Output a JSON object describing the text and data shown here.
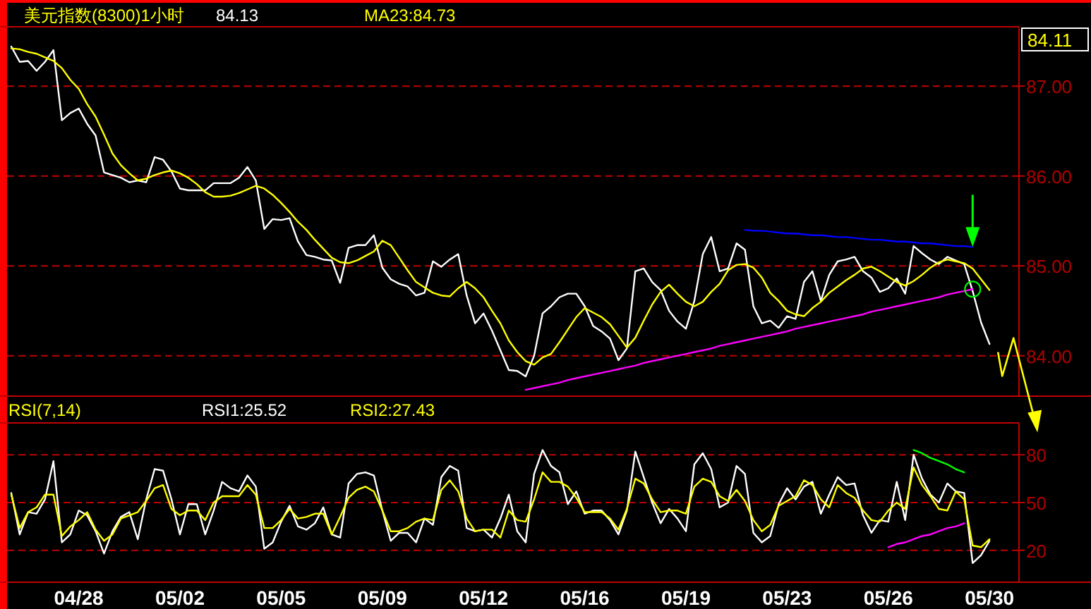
{
  "chart_data": [
    {
      "type": "line",
      "title": "美元指数(8300)1小时",
      "legend": "top",
      "grid": "y",
      "tick_labels": "y",
      "categories": [
        null,
        null,
        null,
        null,
        null,
        null,
        null,
        null,
        null,
        null,
        null,
        null,
        null,
        null,
        null,
        null,
        null,
        null,
        null,
        null,
        null,
        null,
        null,
        null,
        null,
        null,
        null,
        null,
        null,
        null,
        null,
        null,
        null,
        null,
        null,
        null,
        null,
        null,
        null,
        null,
        null,
        null,
        null,
        null,
        null,
        null,
        null,
        null,
        null,
        null,
        null,
        null,
        null,
        null,
        null,
        null,
        null,
        null,
        null,
        null,
        null,
        null,
        null,
        null,
        null,
        null,
        null,
        null,
        null,
        null,
        null,
        null,
        null,
        null,
        null,
        null,
        null,
        null,
        null,
        null,
        null,
        null,
        null,
        null,
        null,
        null,
        null,
        null,
        null,
        null,
        null,
        null,
        null,
        null,
        null,
        null,
        null,
        null,
        null,
        null,
        null,
        null,
        null,
        null,
        null,
        null,
        null,
        null,
        null,
        null,
        null,
        null,
        null,
        null,
        null,
        null,
        null,
        null,
        null,
        null
      ],
      "ylim": [
        83.55,
        87.66
      ],
      "yticks": [
        {
          "value": 84,
          "label": "84.00"
        },
        {
          "value": 85,
          "label": "85.00"
        },
        {
          "value": 86,
          "label": "86.00"
        },
        {
          "value": 87,
          "label": "87.00"
        }
      ],
      "annotations": [
        "84.11"
      ],
      "series": [
        {
          "name": "84.13",
          "color": "#ffffff",
          "values": [
            87.44,
            87.27,
            87.28,
            87.17,
            87.27,
            87.4,
            86.62,
            86.7,
            86.75,
            86.58,
            86.45,
            86.04,
            86.01,
            85.98,
            85.93,
            85.95,
            85.93,
            86.21,
            86.18,
            86.05,
            85.86,
            85.84,
            85.84,
            85.84,
            85.92,
            85.92,
            85.92,
            85.98,
            86.1,
            85.95,
            85.41,
            85.52,
            85.51,
            85.53,
            85.27,
            85.12,
            85.1,
            85.07,
            85.06,
            84.81,
            85.2,
            85.23,
            85.23,
            85.34,
            84.98,
            84.85,
            84.8,
            84.77,
            84.67,
            84.7,
            85.05,
            84.99,
            85.07,
            85.13,
            84.67,
            84.36,
            84.47,
            84.28,
            84.06,
            83.84,
            83.83,
            83.77,
            84.0,
            84.47,
            84.55,
            84.65,
            84.69,
            84.69,
            84.55,
            84.33,
            84.27,
            84.19,
            83.95,
            84.08,
            84.94,
            84.97,
            84.82,
            84.73,
            84.5,
            84.38,
            84.3,
            84.61,
            85.13,
            85.32,
            84.94,
            84.97,
            85.25,
            85.18,
            84.55,
            84.36,
            84.39,
            84.31,
            84.44,
            84.41,
            84.82,
            84.94,
            84.61,
            84.9,
            85.05,
            85.07,
            85.1,
            84.94,
            84.87,
            84.71,
            84.75,
            84.86,
            84.69,
            85.22,
            85.14,
            85.07,
            85.02,
            85.1,
            85.06,
            85.02,
            84.72,
            84.37,
            84.13,
            null,
            null,
            null
          ]
        },
        {
          "name": "MA23:84.73",
          "color": "#ffff00",
          "values": [
            87.42,
            87.41,
            87.38,
            87.36,
            87.32,
            87.28,
            87.2,
            87.07,
            86.97,
            86.8,
            86.66,
            86.46,
            86.25,
            86.12,
            86.03,
            85.95,
            85.97,
            86.01,
            86.04,
            86.06,
            86.03,
            85.98,
            85.91,
            85.82,
            85.77,
            85.77,
            85.78,
            85.81,
            85.85,
            85.89,
            85.86,
            85.79,
            85.7,
            85.6,
            85.49,
            85.4,
            85.29,
            85.19,
            85.09,
            85.04,
            85.03,
            85.06,
            85.11,
            85.16,
            85.28,
            85.23,
            85.09,
            84.95,
            84.82,
            84.76,
            84.7,
            84.67,
            84.66,
            84.75,
            84.82,
            84.75,
            84.65,
            84.5,
            84.36,
            84.17,
            84.04,
            83.94,
            83.9,
            83.98,
            84.02,
            84.15,
            84.29,
            84.43,
            84.53,
            84.48,
            84.43,
            84.35,
            84.22,
            84.09,
            84.2,
            84.39,
            84.57,
            84.71,
            84.79,
            84.69,
            84.6,
            84.55,
            84.6,
            84.71,
            84.8,
            84.95,
            85.01,
            85.02,
            84.98,
            84.87,
            84.7,
            84.61,
            84.5,
            84.46,
            84.44,
            84.53,
            84.6,
            84.7,
            84.77,
            84.84,
            84.9,
            84.97,
            84.99,
            84.94,
            84.88,
            84.82,
            84.78,
            84.83,
            84.9,
            84.98,
            85.04,
            85.07,
            85.05,
            85.03,
            84.97,
            84.85,
            84.73,
            null,
            null,
            null
          ]
        },
        {
          "color": "#0000ff",
          "values": [
            null,
            null,
            null,
            null,
            null,
            null,
            null,
            null,
            null,
            null,
            null,
            null,
            null,
            null,
            null,
            null,
            null,
            null,
            null,
            null,
            null,
            null,
            null,
            null,
            null,
            null,
            null,
            null,
            null,
            null,
            null,
            null,
            null,
            null,
            null,
            null,
            null,
            null,
            null,
            null,
            null,
            null,
            null,
            null,
            null,
            null,
            null,
            null,
            null,
            null,
            null,
            null,
            null,
            null,
            null,
            null,
            null,
            null,
            null,
            null,
            null,
            null,
            null,
            null,
            null,
            null,
            null,
            null,
            null,
            null,
            null,
            null,
            null,
            null,
            null,
            null,
            null,
            null,
            null,
            null,
            null,
            null,
            null,
            null,
            null,
            null,
            null,
            85.4,
            85.39,
            85.39,
            85.38,
            85.37,
            85.36,
            85.36,
            85.35,
            85.34,
            85.34,
            85.33,
            85.32,
            85.32,
            85.31,
            85.3,
            85.29,
            85.29,
            85.28,
            85.27,
            85.27,
            85.26,
            85.25,
            85.25,
            85.24,
            85.23,
            85.22,
            85.22,
            85.21,
            null,
            null,
            null,
            null,
            null
          ]
        },
        {
          "color": "#ff00ff",
          "values": [
            null,
            null,
            null,
            null,
            null,
            null,
            null,
            null,
            null,
            null,
            null,
            null,
            null,
            null,
            null,
            null,
            null,
            null,
            null,
            null,
            null,
            null,
            null,
            null,
            null,
            null,
            null,
            null,
            null,
            null,
            null,
            null,
            null,
            null,
            null,
            null,
            null,
            null,
            null,
            null,
            null,
            null,
            null,
            null,
            null,
            null,
            null,
            null,
            null,
            null,
            null,
            null,
            null,
            null,
            null,
            null,
            null,
            null,
            null,
            null,
            null,
            83.62,
            83.64,
            83.66,
            83.68,
            83.7,
            83.73,
            83.75,
            83.77,
            83.79,
            83.81,
            83.83,
            83.85,
            83.87,
            83.89,
            83.92,
            83.94,
            83.96,
            83.98,
            84.0,
            84.02,
            84.04,
            84.06,
            84.08,
            84.11,
            84.13,
            84.15,
            84.17,
            84.19,
            84.21,
            84.23,
            84.25,
            84.27,
            84.3,
            84.32,
            84.34,
            84.36,
            84.38,
            84.4,
            84.42,
            84.44,
            84.46,
            84.49,
            84.51,
            84.53,
            84.55,
            84.57,
            84.59,
            84.61,
            84.63,
            84.65,
            84.68,
            84.7,
            84.72,
            84.74,
            null,
            null,
            null,
            null,
            null
          ]
        }
      ]
    },
    {
      "type": "line",
      "title": "RSI(7,14)",
      "legend": "top",
      "grid": "y",
      "categories": [
        null,
        null,
        null,
        null,
        null,
        null,
        null,
        null,
        "04/28",
        null,
        null,
        null,
        null,
        null,
        null,
        null,
        null,
        null,
        null,
        null,
        "05/02",
        null,
        null,
        null,
        null,
        null,
        null,
        null,
        null,
        null,
        null,
        null,
        "05/05",
        null,
        null,
        null,
        null,
        null,
        null,
        null,
        null,
        null,
        null,
        null,
        "05/09",
        null,
        null,
        null,
        null,
        null,
        null,
        null,
        null,
        null,
        null,
        null,
        "05/12",
        null,
        null,
        null,
        null,
        null,
        null,
        null,
        null,
        null,
        null,
        null,
        "05/16",
        null,
        null,
        null,
        null,
        null,
        null,
        null,
        null,
        null,
        null,
        null,
        "05/19",
        null,
        null,
        null,
        null,
        null,
        null,
        null,
        null,
        null,
        null,
        null,
        "05/23",
        null,
        null,
        null,
        null,
        null,
        null,
        null,
        null,
        null,
        null,
        null,
        "05/26",
        null,
        null,
        null,
        null,
        null,
        null,
        null,
        null,
        null,
        null,
        null,
        "05/30",
        null,
        null,
        null
      ],
      "ylim": [
        0,
        100
      ],
      "yticks": [
        20,
        50,
        80
      ],
      "series": [
        {
          "name": "RSI1:25.52",
          "color": "#ffffff",
          "values": [
            56,
            30,
            44,
            43,
            52,
            76,
            25,
            30,
            45,
            42,
            32,
            18,
            32,
            41,
            44,
            27,
            52,
            71,
            70,
            52,
            30,
            49,
            49,
            30,
            45,
            63,
            59,
            57,
            67,
            60,
            21,
            25,
            38,
            48,
            35,
            33,
            37,
            47,
            30,
            28,
            62,
            68,
            69,
            67,
            45,
            26,
            31,
            31,
            25,
            40,
            36,
            66,
            73,
            70,
            34,
            32,
            33,
            28,
            40,
            55,
            32,
            25,
            68,
            83,
            73,
            69,
            49,
            57,
            43,
            45,
            45,
            39,
            30,
            45,
            82,
            66,
            50,
            37,
            46,
            40,
            32,
            74,
            81,
            71,
            47,
            50,
            73,
            68,
            31,
            25,
            29,
            49,
            59,
            52,
            60,
            63,
            43,
            55,
            66,
            61,
            62,
            42,
            31,
            39,
            38,
            63,
            39,
            80,
            65,
            55,
            50,
            62,
            57,
            56,
            12,
            17,
            26,
            null,
            null,
            null
          ]
        },
        {
          "name": "RSI2:27.43",
          "color": "#ffff00",
          "values": [
            55,
            34,
            44,
            47,
            55,
            55,
            29,
            35,
            39,
            44,
            33,
            26,
            30,
            40,
            42,
            44,
            51,
            59,
            61,
            46,
            42,
            45,
            45,
            39,
            50,
            54,
            54,
            54,
            61,
            55,
            34,
            34,
            39,
            46,
            40,
            41,
            43,
            43,
            30,
            41,
            53,
            58,
            60,
            57,
            45,
            32,
            32,
            34,
            38,
            40,
            39,
            58,
            64,
            57,
            40,
            32,
            33,
            33,
            28,
            45,
            39,
            38,
            52,
            69,
            63,
            63,
            60,
            53,
            44,
            44,
            44,
            40,
            33,
            46,
            65,
            62,
            52,
            44,
            45,
            45,
            43,
            60,
            65,
            63,
            54,
            51,
            58,
            51,
            39,
            32,
            36,
            48,
            51,
            54,
            64,
            61,
            52,
            47,
            61,
            56,
            53,
            45,
            39,
            38,
            45,
            50,
            46,
            72,
            61,
            54,
            46,
            45,
            57,
            52,
            23,
            22,
            27,
            null,
            null,
            null
          ]
        },
        {
          "color": "#00ff00",
          "values": [
            null,
            null,
            null,
            null,
            null,
            null,
            null,
            null,
            null,
            null,
            null,
            null,
            null,
            null,
            null,
            null,
            null,
            null,
            null,
            null,
            null,
            null,
            null,
            null,
            null,
            null,
            null,
            null,
            null,
            null,
            null,
            null,
            null,
            null,
            null,
            null,
            null,
            null,
            null,
            null,
            null,
            null,
            null,
            null,
            null,
            null,
            null,
            null,
            null,
            null,
            null,
            null,
            null,
            null,
            null,
            null,
            null,
            null,
            null,
            null,
            null,
            null,
            null,
            null,
            null,
            null,
            null,
            null,
            null,
            null,
            null,
            null,
            null,
            null,
            null,
            null,
            null,
            null,
            null,
            null,
            null,
            null,
            null,
            null,
            null,
            null,
            null,
            null,
            null,
            null,
            null,
            null,
            null,
            null,
            null,
            null,
            null,
            null,
            null,
            null,
            null,
            null,
            null,
            null,
            null,
            null,
            null,
            83,
            81,
            78,
            76,
            74,
            71,
            69,
            null,
            null,
            null,
            null,
            null,
            null
          ]
        },
        {
          "color": "#ff00ff",
          "values": [
            null,
            null,
            null,
            null,
            null,
            null,
            null,
            null,
            null,
            null,
            null,
            null,
            null,
            null,
            null,
            null,
            null,
            null,
            null,
            null,
            null,
            null,
            null,
            null,
            null,
            null,
            null,
            null,
            null,
            null,
            null,
            null,
            null,
            null,
            null,
            null,
            null,
            null,
            null,
            null,
            null,
            null,
            null,
            null,
            null,
            null,
            null,
            null,
            null,
            null,
            null,
            null,
            null,
            null,
            null,
            null,
            null,
            null,
            null,
            null,
            null,
            null,
            null,
            null,
            null,
            null,
            null,
            null,
            null,
            null,
            null,
            null,
            null,
            null,
            null,
            null,
            null,
            null,
            null,
            null,
            null,
            null,
            null,
            null,
            null,
            null,
            null,
            null,
            null,
            null,
            null,
            null,
            null,
            null,
            null,
            null,
            null,
            null,
            null,
            null,
            null,
            null,
            null,
            null,
            22,
            24,
            25,
            27,
            29,
            30,
            32,
            34,
            35,
            37,
            null,
            null,
            null,
            null,
            null,
            null
          ]
        }
      ]
    }
  ]
}
